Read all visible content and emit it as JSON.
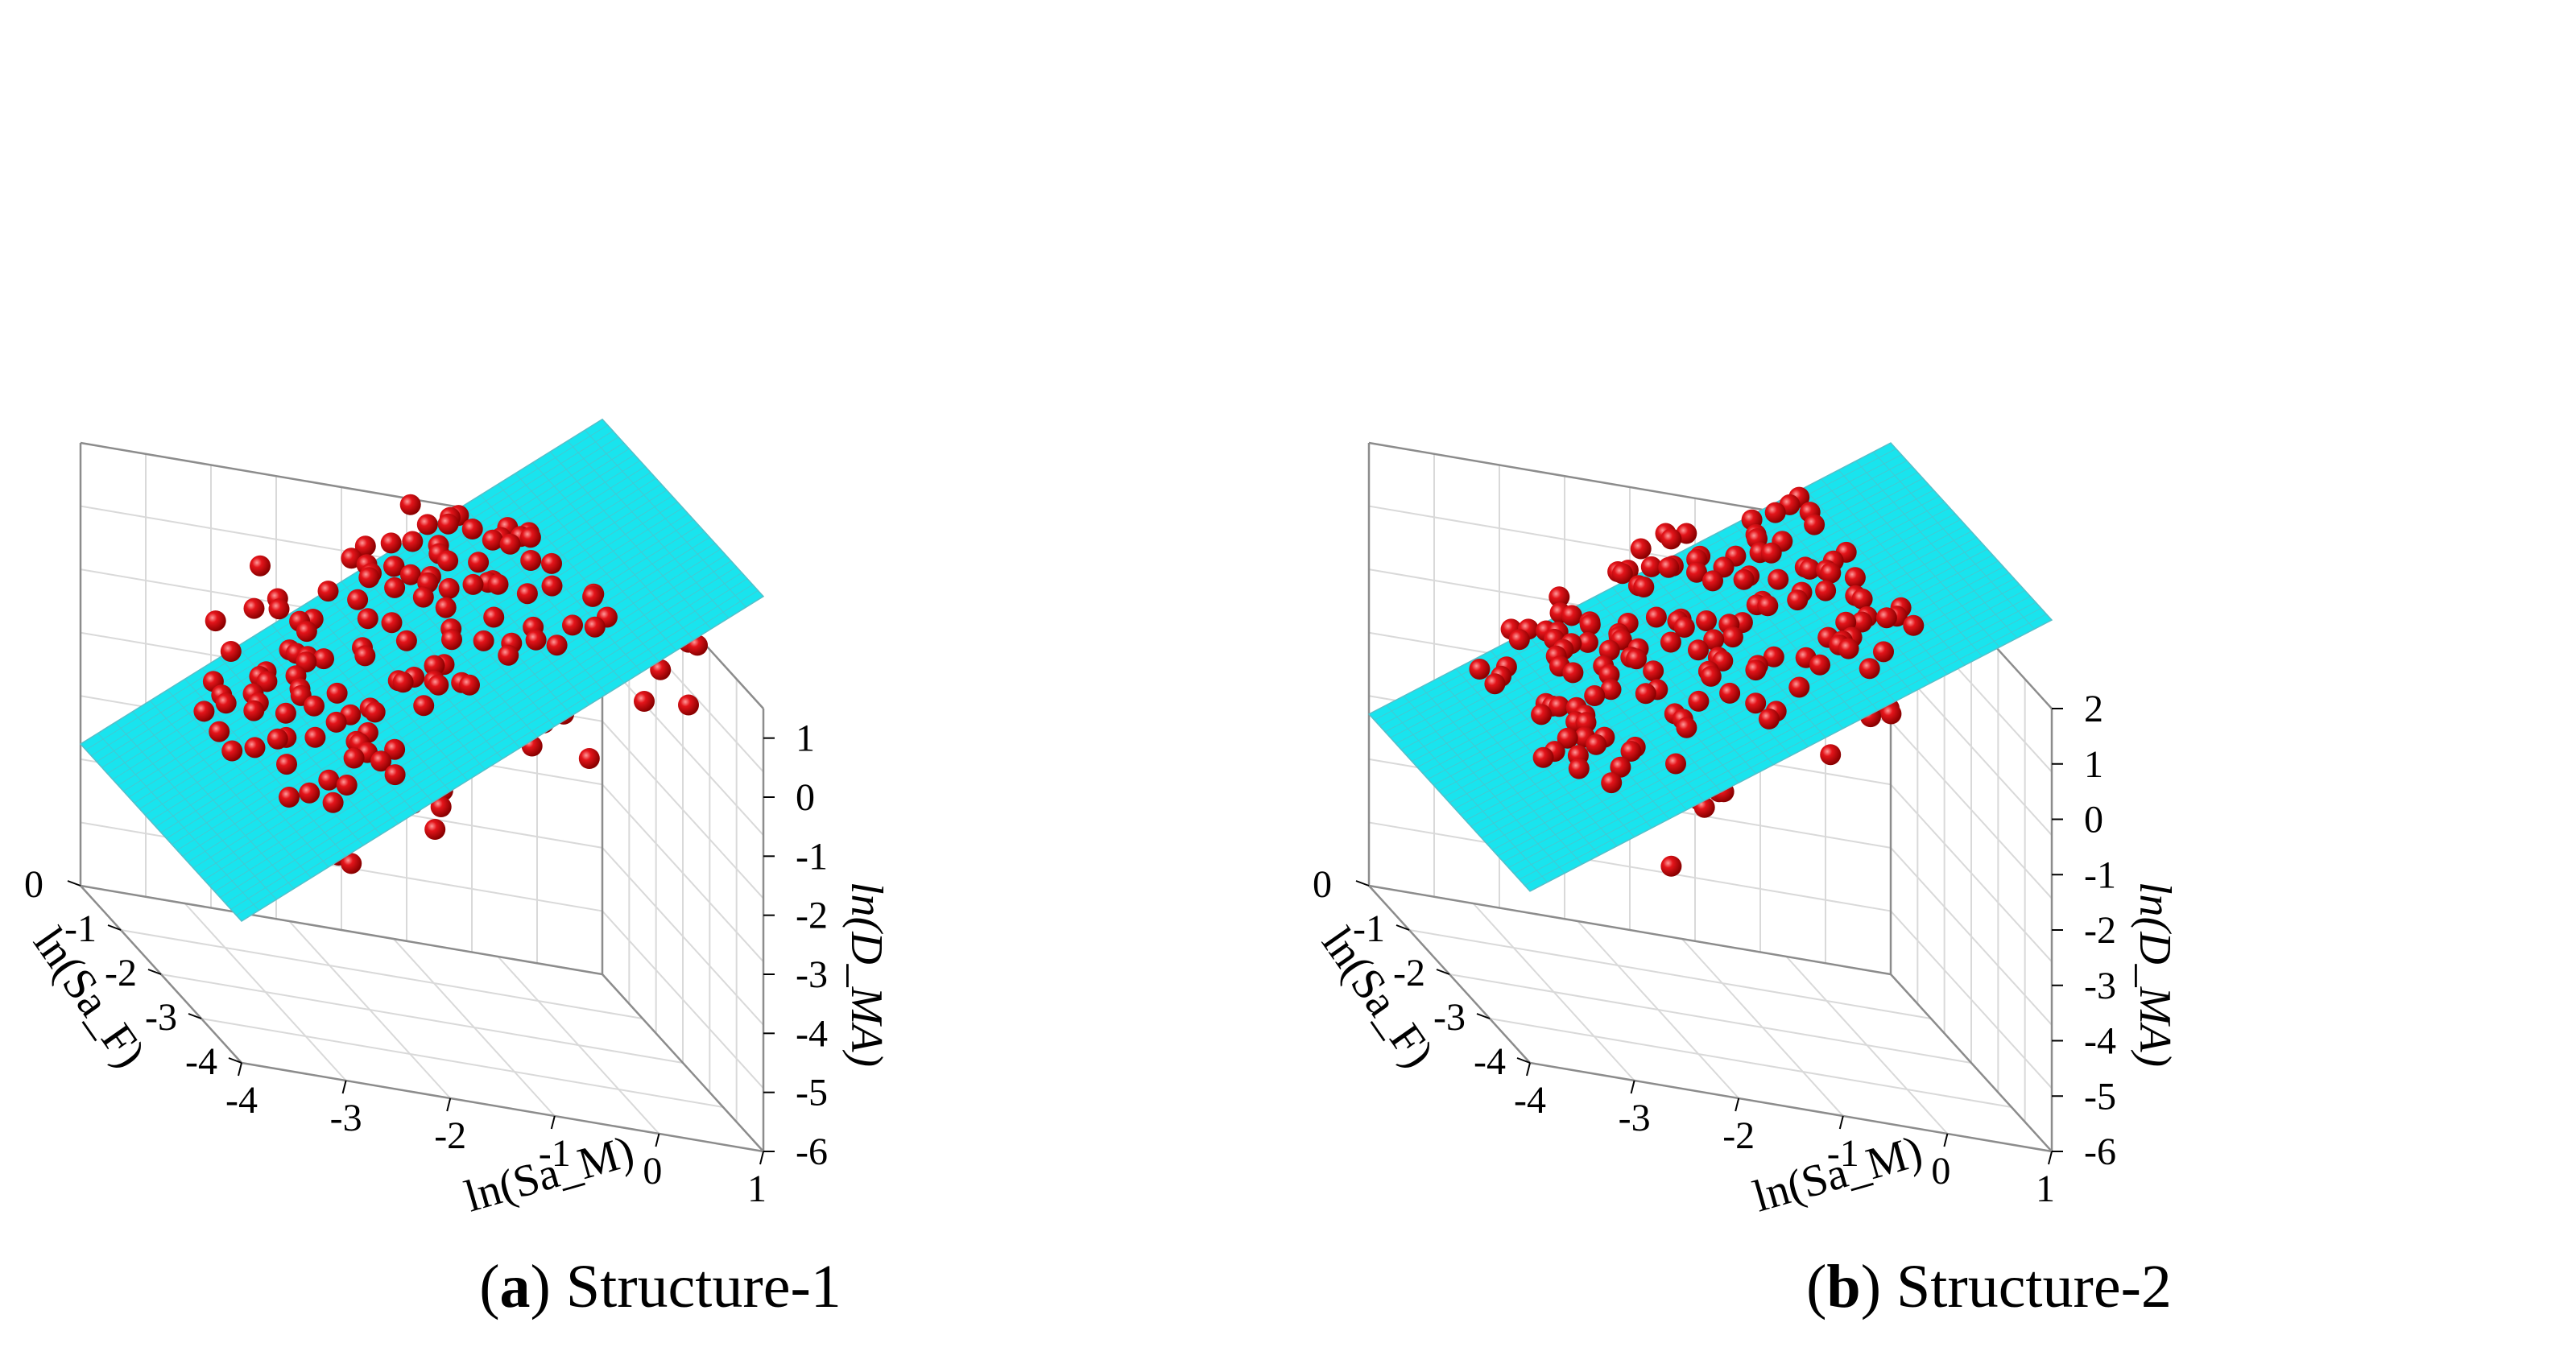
{
  "figure": {
    "panels": [
      {
        "letter": "a",
        "name": "Structure-1"
      },
      {
        "letter": "b",
        "name": "Structure-2"
      }
    ]
  },
  "colors": {
    "plane": "#19e4ee",
    "plane_grid": "#55bfc9",
    "point": "#e4141a",
    "grid": "#d9d9d9",
    "box": "#8c8c8c"
  },
  "chart_data": [
    {
      "type": "scatter",
      "subtype": "3d-scatter-with-regression-plane",
      "caption_letter": "a",
      "title": "Structure-1",
      "xlabel": "ln(Sa_M)",
      "ylabel": "ln(Sa_F)",
      "zlabel": "ln(D_MA)",
      "x_ticks": [
        "-4",
        "-3",
        "-2",
        "-1",
        "0",
        "1"
      ],
      "y_ticks": [
        "0",
        "-1",
        "-2",
        "-3",
        "-4"
      ],
      "z_ticks": [
        "1",
        "0",
        "-1",
        "-2",
        "-3",
        "-4",
        "-5",
        "-6"
      ],
      "xlim": [
        -4,
        1
      ],
      "ylim": [
        -4,
        0
      ],
      "zlim": [
        -6,
        1.5
      ],
      "plane": {
        "intercept": 2.0,
        "slope_x": 1.4,
        "slope_y": 0.0
      },
      "points_count": 300,
      "points_description": "~300 observations (spheres) spread along the regression plane, ln(D_MA) from about -5.5 to 1.5"
    },
    {
      "type": "scatter",
      "subtype": "3d-scatter-with-regression-plane",
      "caption_letter": "b",
      "title": "Structure-2",
      "xlabel": "ln(Sa_M)",
      "ylabel": "ln(Sa_F)",
      "zlabel": "ln(D_MA)",
      "x_ticks": [
        "-4",
        "-3",
        "-2",
        "-1",
        "0",
        "1"
      ],
      "y_ticks": [
        "0",
        "-1",
        "-2",
        "-3",
        "-4"
      ],
      "z_ticks": [
        "2",
        "1",
        "0",
        "-1",
        "-2",
        "-3",
        "-4",
        "-5",
        "-6"
      ],
      "xlim": [
        -4,
        1
      ],
      "ylim": [
        -4,
        0
      ],
      "zlim": [
        -6,
        2
      ],
      "plane": {
        "intercept": 2.3,
        "slope_x": 1.3,
        "slope_y": 0.0
      },
      "points_count": 300,
      "points_description": "~300 observations (spheres) spread along the regression plane, ln(D_MA) from about -5.3 to 2"
    }
  ]
}
